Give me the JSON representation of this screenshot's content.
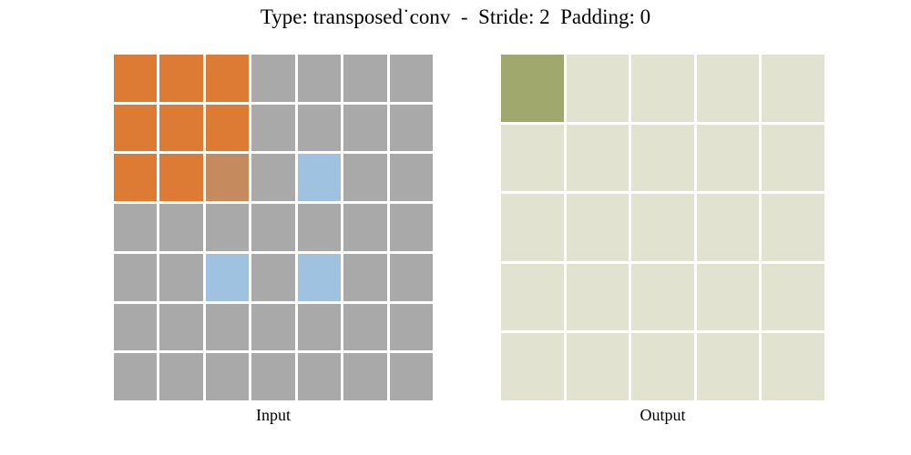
{
  "title": "Type: transposed˙conv  -  Stride: 2  Padding: 0",
  "colors": {
    "gray": "#a9a9a9",
    "orange": "#dd7b34",
    "kernel_input_overlap": "#c68a5f",
    "blue": "#9fc2e0",
    "output_base": "#e1e2d0",
    "output_active": "#a0a86e",
    "background": "#ffffff"
  },
  "input_grid": {
    "name": "input",
    "label": "Input",
    "rows": 7,
    "cols": 7,
    "legend": {
      "G": "gray",
      "O": "orange",
      "X": "kernel_input_overlap",
      "B": "blue"
    },
    "cells": [
      "OOOGGGG",
      "OOOGGGG",
      "OOXGBGG",
      "GGGGGGG",
      "GGBGBGG",
      "GGGGGGG",
      "GGGGGGG"
    ]
  },
  "output_grid": {
    "name": "output",
    "label": "Output",
    "rows": 5,
    "cols": 5,
    "legend": {
      "A": "output_active",
      ".": "output_base"
    },
    "cells": [
      "A....",
      ".....",
      ".....",
      ".....",
      "....."
    ]
  }
}
